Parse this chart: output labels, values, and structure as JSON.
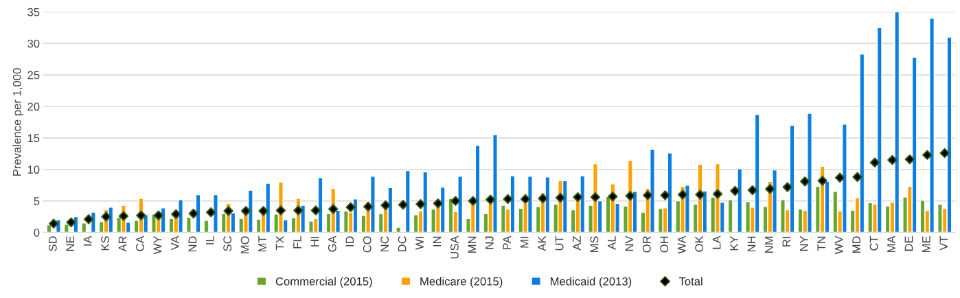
{
  "chart_data": {
    "type": "bar",
    "ylabel": "Prevalence per 1,000",
    "categories": [
      "SD",
      "NE",
      "IA",
      "KS",
      "AR",
      "CA",
      "WY",
      "VA",
      "ND",
      "IL",
      "SC",
      "MO",
      "MT",
      "TX",
      "FL",
      "HI",
      "GA",
      "ID",
      "CO",
      "NC",
      "DC",
      "WI",
      "IN",
      "USA",
      "MN",
      "NJ",
      "PA",
      "MI",
      "AK",
      "UT",
      "AZ",
      "MS",
      "AL",
      "NV",
      "OR",
      "OH",
      "WA",
      "OK",
      "LA",
      "KY",
      "NH",
      "NM",
      "RI",
      "NY",
      "TN",
      "WV",
      "MD",
      "CT",
      "MA",
      "DE",
      "ME",
      "VT"
    ],
    "series": [
      {
        "name": "Commercial (2015)",
        "color": "#66a62a",
        "values": [
          1.2,
          1.3,
          1.5,
          1.7,
          2.4,
          1.9,
          2.9,
          2.2,
          2.4,
          1.9,
          3.0,
          2.2,
          2.1,
          2.9,
          2.3,
          1.8,
          3.0,
          3.4,
          2.7,
          3.0,
          0.8,
          2.8,
          3.7,
          5.4,
          2.2,
          3.0,
          4.3,
          3.8,
          4.1,
          4.5,
          3.6,
          4.3,
          5.7,
          4.2,
          3.2,
          3.8,
          5.0,
          4.5,
          5.6,
          5.2,
          4.9,
          4.1,
          5.2,
          3.7,
          7.3,
          6.5,
          3.5,
          4.7,
          4.2,
          5.6,
          5.1,
          4.5
        ]
      },
      {
        "name": "Medicare (2015)",
        "color": "#ffa200",
        "values": [
          null,
          null,
          null,
          3.6,
          4.3,
          5.4,
          2.4,
          2.6,
          null,
          null,
          4.6,
          3.1,
          3.0,
          8.0,
          5.4,
          2.2,
          7.0,
          3.2,
          4.9,
          5.1,
          null,
          3.4,
          4.2,
          3.3,
          4.5,
          4.6,
          3.7,
          4.6,
          6.3,
          8.2,
          5.2,
          10.9,
          7.7,
          11.4,
          7.0,
          3.9,
          7.3,
          10.8,
          10.9,
          null,
          4.0,
          8.1,
          3.6,
          3.5,
          10.5,
          3.4,
          5.5,
          4.5,
          4.8,
          7.3,
          3.5,
          3.8
        ]
      },
      {
        "name": "Medicaid (2013)",
        "color": "#0b7fe0",
        "values": [
          2.0,
          2.5,
          3.2,
          4.0,
          1.6,
          2.8,
          3.9,
          5.2,
          6.0,
          6.0,
          3.1,
          6.7,
          7.8,
          2.0,
          4.3,
          8.7,
          3.5,
          5.3,
          8.9,
          7.1,
          9.8,
          9.6,
          7.2,
          8.9,
          13.8,
          15.5,
          9.0,
          8.9,
          8.8,
          8.2,
          9.0,
          5.0,
          4.6,
          6.5,
          13.2,
          12.6,
          7.5,
          6.6,
          4.8,
          10.1,
          18.7,
          9.9,
          17.0,
          18.9,
          8.1,
          17.2,
          28.3,
          32.5,
          35.0,
          27.8,
          34.0,
          31.0
        ]
      },
      {
        "name": "Total",
        "type": "scatter",
        "color": "#000000",
        "marker": "diamond",
        "values": [
          1.4,
          1.6,
          2.1,
          2.5,
          2.6,
          2.7,
          2.7,
          2.9,
          3.0,
          3.2,
          3.4,
          3.4,
          3.4,
          3.5,
          3.5,
          3.5,
          3.7,
          4.0,
          4.1,
          4.3,
          4.4,
          4.5,
          4.6,
          5.0,
          5.0,
          5.2,
          5.3,
          5.3,
          5.4,
          5.5,
          5.6,
          5.6,
          5.7,
          5.8,
          5.9,
          5.9,
          6.0,
          6.0,
          6.1,
          6.6,
          6.7,
          6.9,
          7.2,
          8.1,
          8.2,
          8.7,
          8.8,
          11.1,
          11.5,
          11.6,
          12.3,
          12.6
        ]
      }
    ],
    "ylim": [
      0,
      35
    ],
    "yticks": [
      0,
      5,
      10,
      15,
      20,
      25,
      30,
      35
    ],
    "grid": "y",
    "legend": "bottom"
  }
}
